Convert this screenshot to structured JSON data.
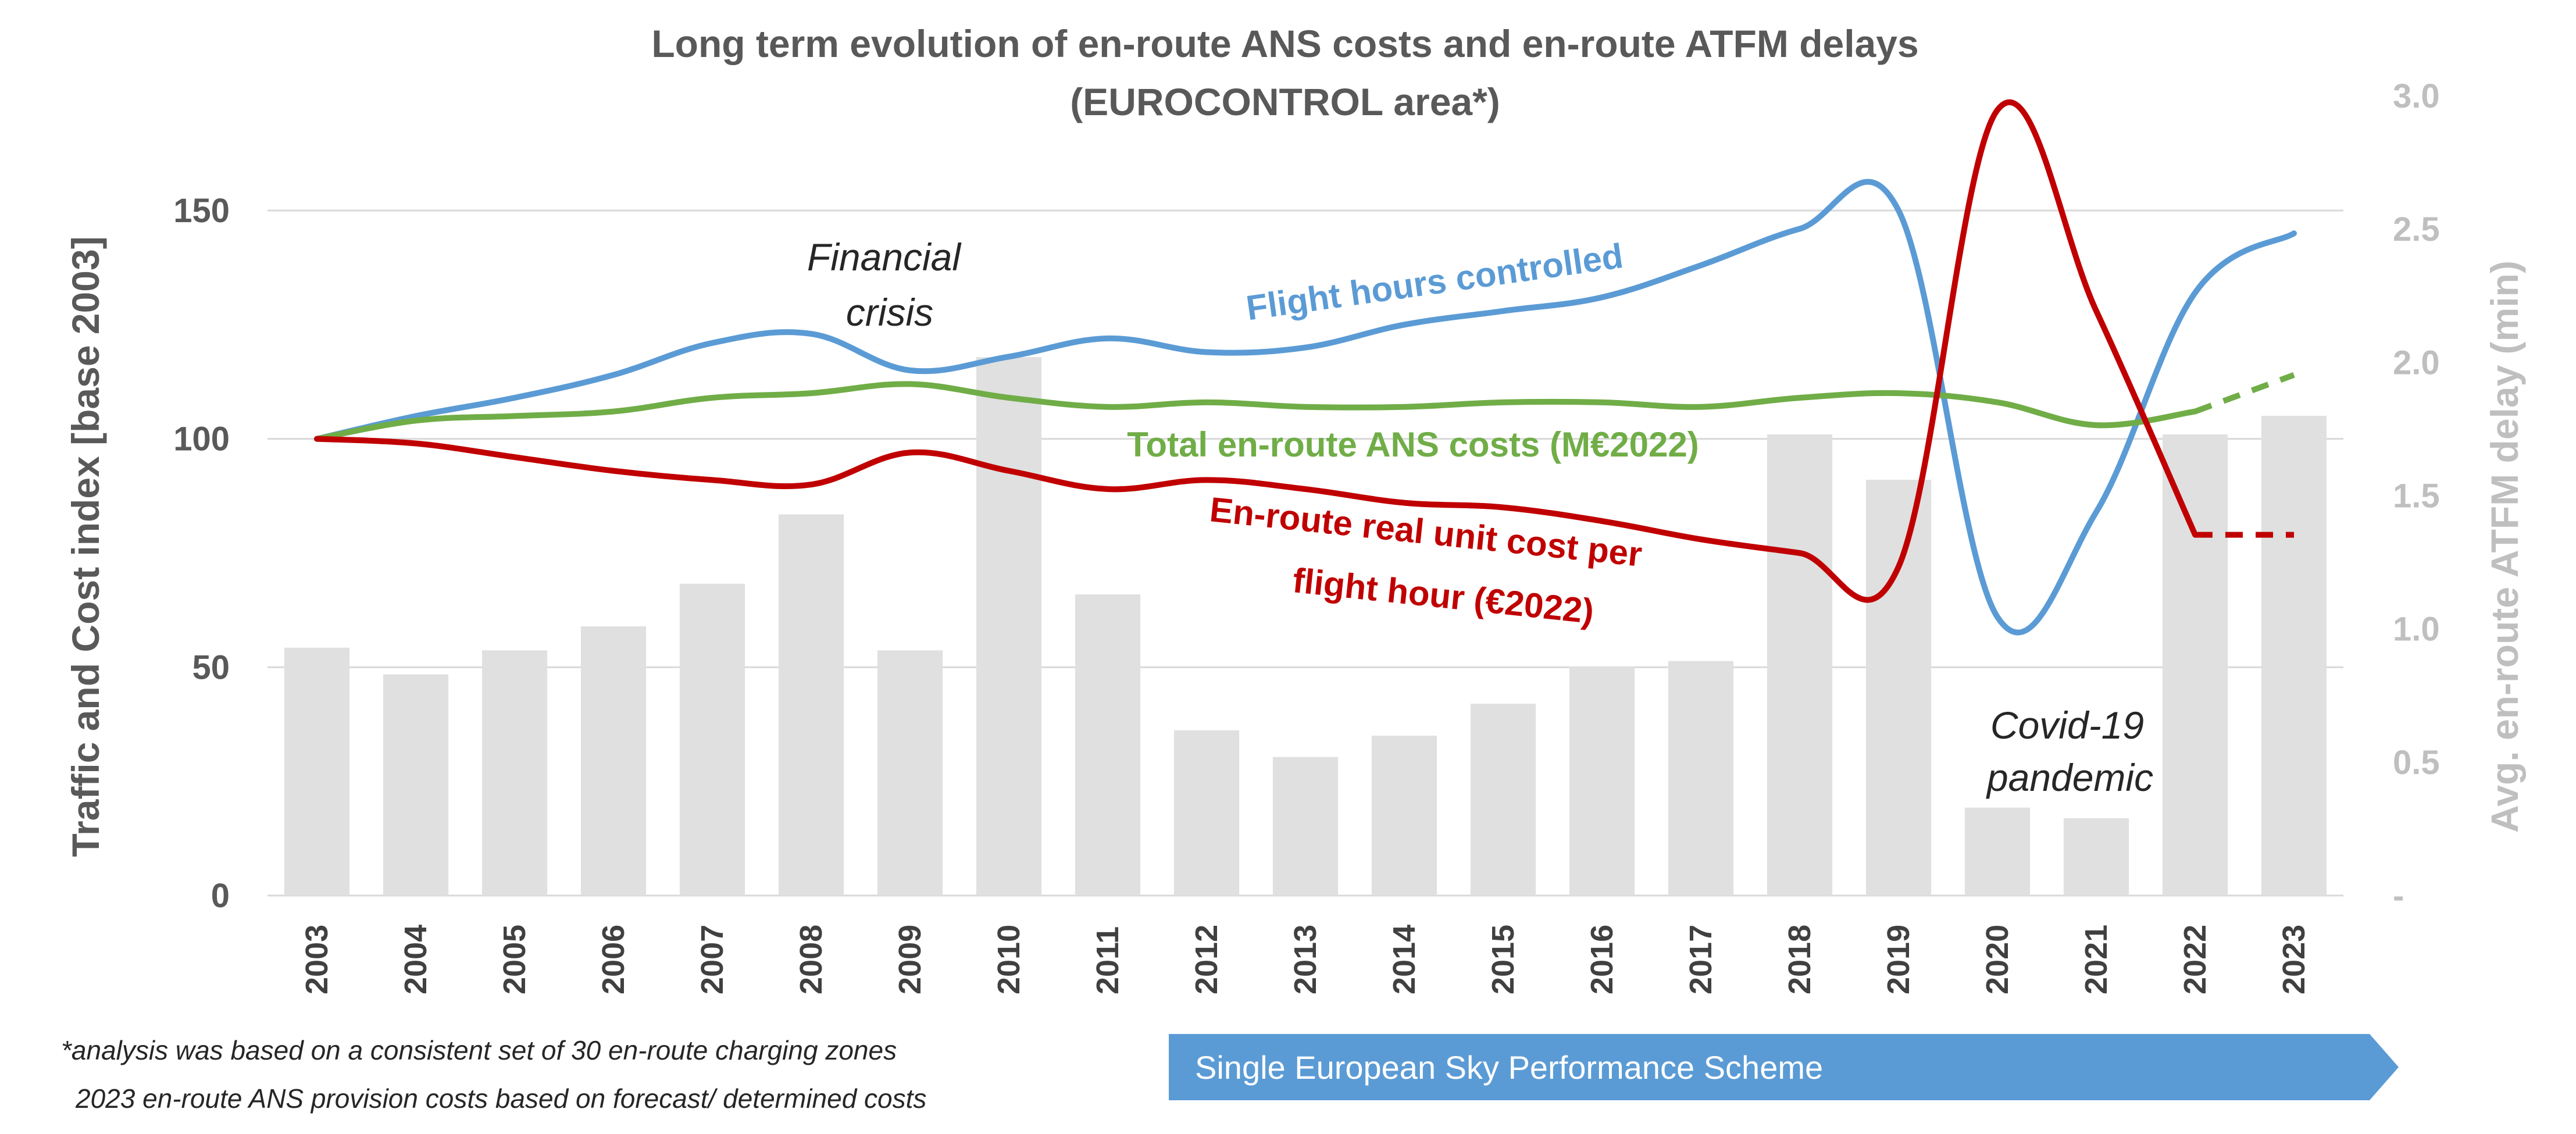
{
  "chart_data": {
    "type": "bar+line (dual axis)",
    "title_line1": "Long term evolution of en-route ANS costs and en-route ATFM delays",
    "title_line2": "(EUROCONTROL area*)",
    "ylabel_left": "Traffic and Cost index [base 2003]",
    "ylabel_right": "Avg. en-route ATFM delay (min)",
    "left_axis": {
      "min": 0,
      "max": 150,
      "ticks": [
        0,
        50,
        100,
        150
      ],
      "tick_labels": [
        "0",
        "50",
        "100",
        "150"
      ]
    },
    "right_axis": {
      "min": 0,
      "max": 3.0,
      "ticks": [
        0,
        0.5,
        1.0,
        1.5,
        2.0,
        2.5,
        3.0
      ],
      "tick_labels": [
        "-",
        "0.5",
        "1.0",
        "1.5",
        "2.0",
        "2.5",
        "3.0"
      ]
    },
    "grid": true,
    "categories": [
      "2003",
      "2004",
      "2005",
      "2006",
      "2007",
      "2008",
      "2009",
      "2010",
      "2011",
      "2012",
      "2013",
      "2014",
      "2015",
      "2016",
      "2017",
      "2018",
      "2019",
      "2020",
      "2021",
      "2022",
      "2023"
    ],
    "bars": {
      "axis": "right",
      "color": "#E0E0E0",
      "values": [
        0.93,
        0.83,
        0.92,
        1.01,
        1.17,
        1.43,
        0.92,
        2.02,
        1.13,
        0.62,
        0.52,
        0.6,
        0.72,
        0.86,
        0.88,
        1.73,
        1.56,
        0.33,
        0.29,
        1.73,
        1.8
      ]
    },
    "series": [
      {
        "name": "Flight hours controlled",
        "axis": "left",
        "color": "#5B9BD5",
        "values": [
          100,
          105,
          109,
          114,
          121,
          123,
          115,
          118,
          122,
          119,
          120,
          125,
          128,
          131,
          138,
          146,
          150,
          61,
          84,
          132,
          145
        ],
        "dashed_from": null
      },
      {
        "name": "Total en-route ANS costs (M€2022)",
        "axis": "left",
        "color": "#70AD47",
        "values": [
          100,
          104,
          105,
          106,
          109,
          110,
          112,
          109,
          107,
          108,
          107,
          107,
          108,
          108,
          107,
          109,
          110,
          108,
          103,
          106,
          114
        ],
        "dashed_from": "2022"
      },
      {
        "name": "En-route real unit cost per flight hour (€2022)",
        "axis": "left",
        "color": "#C00000",
        "values": [
          100,
          99,
          96,
          93,
          91,
          90,
          97,
          93,
          89,
          91,
          89,
          86,
          85,
          82,
          78,
          75,
          72,
          172,
          128,
          79,
          79
        ],
        "dashed_from": "2022"
      }
    ],
    "series_labels": {
      "flight_hours": "Flight hours controlled",
      "costs": "Total en-route ANS costs (M€2022)",
      "unit_cost_line1": "En-route real unit cost per",
      "unit_cost_line2": "flight hour (€2022)"
    },
    "annotations": {
      "financial_crisis_line1": "Financial",
      "financial_crisis_line2": "crisis",
      "covid_line1": "Covid-19",
      "covid_line2": "pandemic"
    }
  },
  "footnote": {
    "line1": "*analysis was based on a consistent set of 30 en-route charging zones",
    "line2": "2023 en-route ANS provision costs based on forecast/ determined costs"
  },
  "banner": {
    "label": "Single European Sky Performance Scheme",
    "color": "#5B9BD5"
  }
}
